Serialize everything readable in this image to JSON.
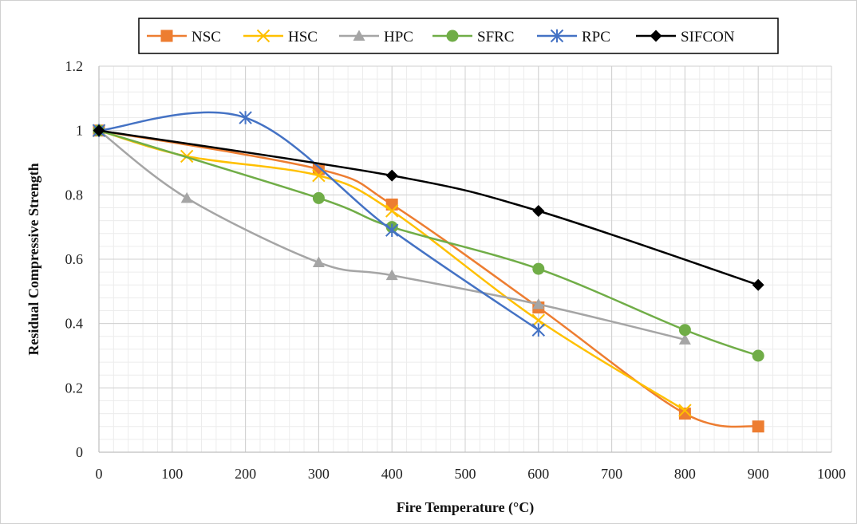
{
  "chart_data": {
    "type": "line",
    "title": "",
    "xlabel": "Fire Temperature (°C)",
    "ylabel": "Residual Compressive Strength",
    "xlim": [
      0,
      1000
    ],
    "ylim": [
      0,
      1.2
    ],
    "x_ticks": [
      "0",
      "100",
      "200",
      "300",
      "400",
      "500",
      "600",
      "700",
      "800",
      "900",
      "1000"
    ],
    "y_ticks": [
      "0",
      "0.2",
      "0.4",
      "0.6",
      "0.8",
      "1",
      "1.2"
    ],
    "grid": true,
    "minor_grid": true,
    "legend_position": "top",
    "smooth_lines": true,
    "series": [
      {
        "name": "NSC",
        "color": "#ED7D31",
        "marker": "square",
        "points": [
          [
            0,
            1.0
          ],
          [
            300,
            0.88
          ],
          [
            400,
            0.77
          ],
          [
            600,
            0.45
          ],
          [
            800,
            0.12
          ],
          [
            900,
            0.08
          ]
        ]
      },
      {
        "name": "HSC",
        "color": "#FFC000",
        "marker": "x",
        "points": [
          [
            0,
            1.0
          ],
          [
            120,
            0.92
          ],
          [
            300,
            0.86
          ],
          [
            400,
            0.75
          ],
          [
            600,
            0.41
          ],
          [
            800,
            0.13
          ]
        ]
      },
      {
        "name": "HPC",
        "color": "#A5A5A5",
        "marker": "triangle",
        "points": [
          [
            0,
            1.0
          ],
          [
            120,
            0.79
          ],
          [
            300,
            0.59
          ],
          [
            400,
            0.55
          ],
          [
            600,
            0.46
          ],
          [
            800,
            0.35
          ]
        ]
      },
      {
        "name": "SFRC",
        "color": "#70AD47",
        "marker": "circle",
        "points": [
          [
            0,
            1.0
          ],
          [
            300,
            0.79
          ],
          [
            400,
            0.7
          ],
          [
            600,
            0.57
          ],
          [
            800,
            0.38
          ],
          [
            900,
            0.3
          ]
        ]
      },
      {
        "name": "RPC",
        "color": "#4472C4",
        "marker": "asterisk",
        "points": [
          [
            0,
            1.0
          ],
          [
            200,
            1.04
          ],
          [
            400,
            0.69
          ],
          [
            600,
            0.38
          ]
        ]
      },
      {
        "name": "SIFCON",
        "color": "#000000",
        "marker": "diamond",
        "points": [
          [
            0,
            1.0
          ],
          [
            400,
            0.86
          ],
          [
            600,
            0.75
          ],
          [
            900,
            0.52
          ]
        ]
      }
    ]
  }
}
